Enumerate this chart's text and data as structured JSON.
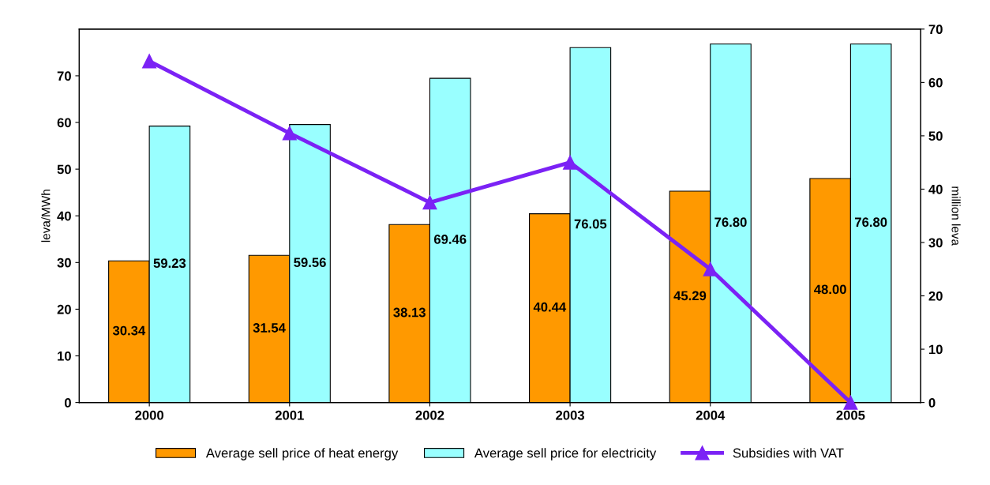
{
  "chart_data": {
    "type": "bar",
    "ylabel": "leva/MWh",
    "y2label": "million leva",
    "categories": [
      "2000",
      "2001",
      "2002",
      "2003",
      "2004",
      "2005"
    ],
    "series": [
      {
        "name": "Average sell price of heat energy",
        "color": "#ff9900",
        "values": [
          30.34,
          31.54,
          38.13,
          40.44,
          45.29,
          48.0
        ],
        "value_labels": [
          "30.34",
          "31.54",
          "38.13",
          "40.44",
          "45.29",
          "48.00"
        ]
      },
      {
        "name": "Average sell price for electricity",
        "color": "#99ffff",
        "values": [
          59.23,
          59.56,
          69.46,
          76.05,
          76.8,
          76.8
        ],
        "value_labels": [
          "59.23",
          "59.56",
          "69.46",
          "76.05",
          "76.80",
          "76.80"
        ]
      },
      {
        "name": "Subsidies with VAT",
        "type": "line",
        "axis": "y2",
        "color": "#7b22f5",
        "marker": "triangle",
        "values": [
          64,
          50.5,
          37.5,
          45,
          25,
          0
        ]
      }
    ],
    "ylim": [
      0,
      80
    ],
    "yticks": [
      0,
      10,
      20,
      30,
      40,
      50,
      60,
      70
    ],
    "y2lim": [
      0,
      70
    ],
    "y2ticks": [
      0,
      10,
      20,
      30,
      40,
      50,
      60,
      70
    ],
    "grid": false,
    "legend": "bottom"
  }
}
